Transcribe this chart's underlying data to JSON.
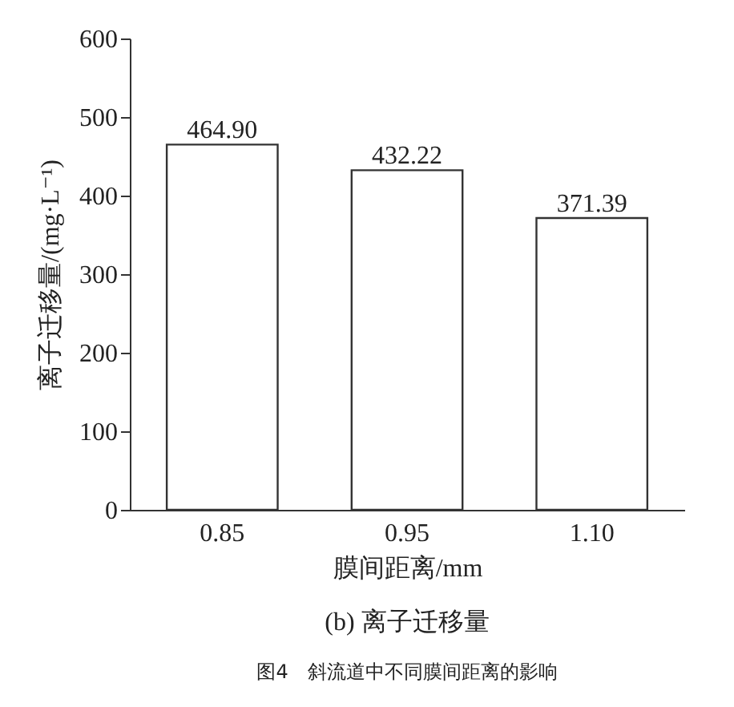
{
  "chart_data": {
    "type": "bar",
    "title": "(b) 离子迁移量",
    "xlabel": "膜间距离/mm",
    "ylabel": "离子迁移量/(mg·L⁻¹)",
    "annotations": [
      "图4　斜流道中不同膜间距离的影响"
    ],
    "categories": [
      "0.85",
      "0.95",
      "1.10"
    ],
    "values": [
      464.9,
      432.22,
      371.39
    ],
    "value_labels": [
      "464.90",
      "432.22",
      "371.39"
    ],
    "color": "#ffffff",
    "ylim": [
      0,
      600
    ],
    "yticks": [
      0,
      100,
      200,
      300,
      400,
      500,
      600
    ],
    "grid": false
  }
}
